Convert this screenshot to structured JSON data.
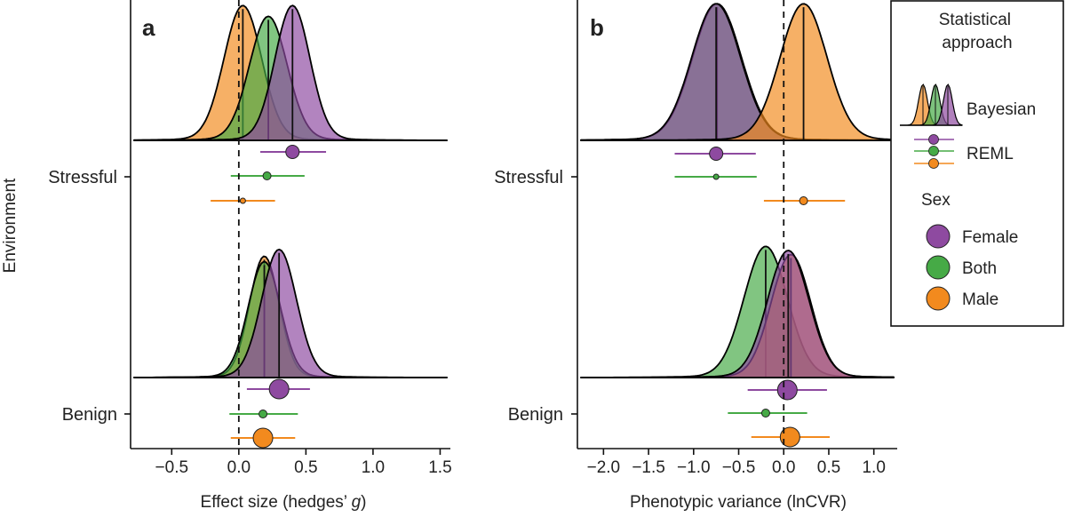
{
  "figure": {
    "y_axis_label": "Environment",
    "categories": [
      "Stressful",
      "Benign"
    ],
    "colors": {
      "Female": "#8e4aa0",
      "Both": "#46aa46",
      "Male": "#f28a1e"
    }
  },
  "legend": {
    "title": "Statistical approach",
    "approach_items": [
      "Bayesian",
      "REML"
    ],
    "sex_title": "Sex",
    "sex_items": [
      "Female",
      "Both",
      "Male"
    ]
  },
  "chart_data": [
    {
      "type": "density-forest",
      "panel": "a",
      "xlabel_prefix": "Effect size (hedges’ ",
      "xlabel_italic": "g",
      "xlabel_suffix": ")",
      "xlim": [
        -0.78,
        1.55
      ],
      "xticks": [
        -0.5,
        0.0,
        0.5,
        1.0,
        1.5
      ],
      "xtick_labels": [
        "−0.5",
        "0.0",
        "0.5",
        "1.0",
        "1.5"
      ],
      "reference_line": 0,
      "groups": [
        {
          "environment": "Stressful",
          "densities": [
            {
              "sex": "Male",
              "mean": 0.03,
              "sd": 0.14,
              "height": 1.0
            },
            {
              "sex": "Both",
              "mean": 0.22,
              "sd": 0.14,
              "height": 0.92
            },
            {
              "sex": "Female",
              "mean": 0.4,
              "sd": 0.13,
              "height": 1.0
            }
          ],
          "reml": [
            {
              "sex": "Female",
              "estimate": 0.4,
              "lower": 0.16,
              "upper": 0.65,
              "size": "medium"
            },
            {
              "sex": "Both",
              "estimate": 0.21,
              "lower": -0.06,
              "upper": 0.49,
              "size": "small"
            },
            {
              "sex": "Male",
              "estimate": 0.03,
              "lower": -0.21,
              "upper": 0.27,
              "size": "tiny"
            }
          ]
        },
        {
          "environment": "Benign",
          "densities": [
            {
              "sex": "Male",
              "mean": 0.19,
              "sd": 0.11,
              "height": 0.9
            },
            {
              "sex": "Both",
              "mean": 0.19,
              "sd": 0.12,
              "height": 0.86
            },
            {
              "sex": "Female",
              "mean": 0.3,
              "sd": 0.13,
              "height": 0.95
            }
          ],
          "reml": [
            {
              "sex": "Female",
              "estimate": 0.3,
              "lower": 0.06,
              "upper": 0.53,
              "size": "large"
            },
            {
              "sex": "Both",
              "estimate": 0.18,
              "lower": -0.07,
              "upper": 0.44,
              "size": "small"
            },
            {
              "sex": "Male",
              "estimate": 0.18,
              "lower": -0.06,
              "upper": 0.42,
              "size": "large"
            }
          ]
        }
      ]
    },
    {
      "type": "density-forest",
      "panel": "b",
      "xlabel": "Phenotypic variance (lnCVR)",
      "xlim": [
        -2.25,
        1.22
      ],
      "xticks": [
        -2.0,
        -1.5,
        -1.0,
        -0.5,
        0.0,
        0.5,
        1.0
      ],
      "xtick_labels": [
        "−2.0",
        "−1.5",
        "−1.0",
        "−0.5",
        "0.0",
        "0.5",
        "1.0"
      ],
      "reference_line": 0,
      "groups": [
        {
          "environment": "Stressful",
          "densities": [
            {
              "sex": "Both",
              "mean": -0.74,
              "sd": 0.27,
              "height": 1.0
            },
            {
              "sex": "Female",
              "mean": -0.75,
              "sd": 0.27,
              "height": 1.0
            },
            {
              "sex": "Male",
              "mean": 0.22,
              "sd": 0.26,
              "height": 1.0
            }
          ],
          "reml": [
            {
              "sex": "Female",
              "estimate": -0.75,
              "lower": -1.21,
              "upper": -0.31,
              "size": "medium"
            },
            {
              "sex": "Both",
              "estimate": -0.75,
              "lower": -1.21,
              "upper": -0.3,
              "size": "tiny"
            },
            {
              "sex": "Male",
              "estimate": 0.22,
              "lower": -0.22,
              "upper": 0.68,
              "size": "small"
            }
          ]
        },
        {
          "environment": "Benign",
          "densities": [
            {
              "sex": "Both",
              "mean": -0.2,
              "sd": 0.24,
              "height": 0.96
            },
            {
              "sex": "Male",
              "mean": 0.08,
              "sd": 0.22,
              "height": 0.9
            },
            {
              "sex": "Female",
              "mean": 0.05,
              "sd": 0.23,
              "height": 0.93
            }
          ],
          "reml": [
            {
              "sex": "Female",
              "estimate": 0.04,
              "lower": -0.4,
              "upper": 0.48,
              "size": "large"
            },
            {
              "sex": "Both",
              "estimate": -0.2,
              "lower": -0.62,
              "upper": 0.26,
              "size": "small"
            },
            {
              "sex": "Male",
              "estimate": 0.07,
              "lower": -0.36,
              "upper": 0.51,
              "size": "large"
            }
          ]
        }
      ]
    }
  ]
}
